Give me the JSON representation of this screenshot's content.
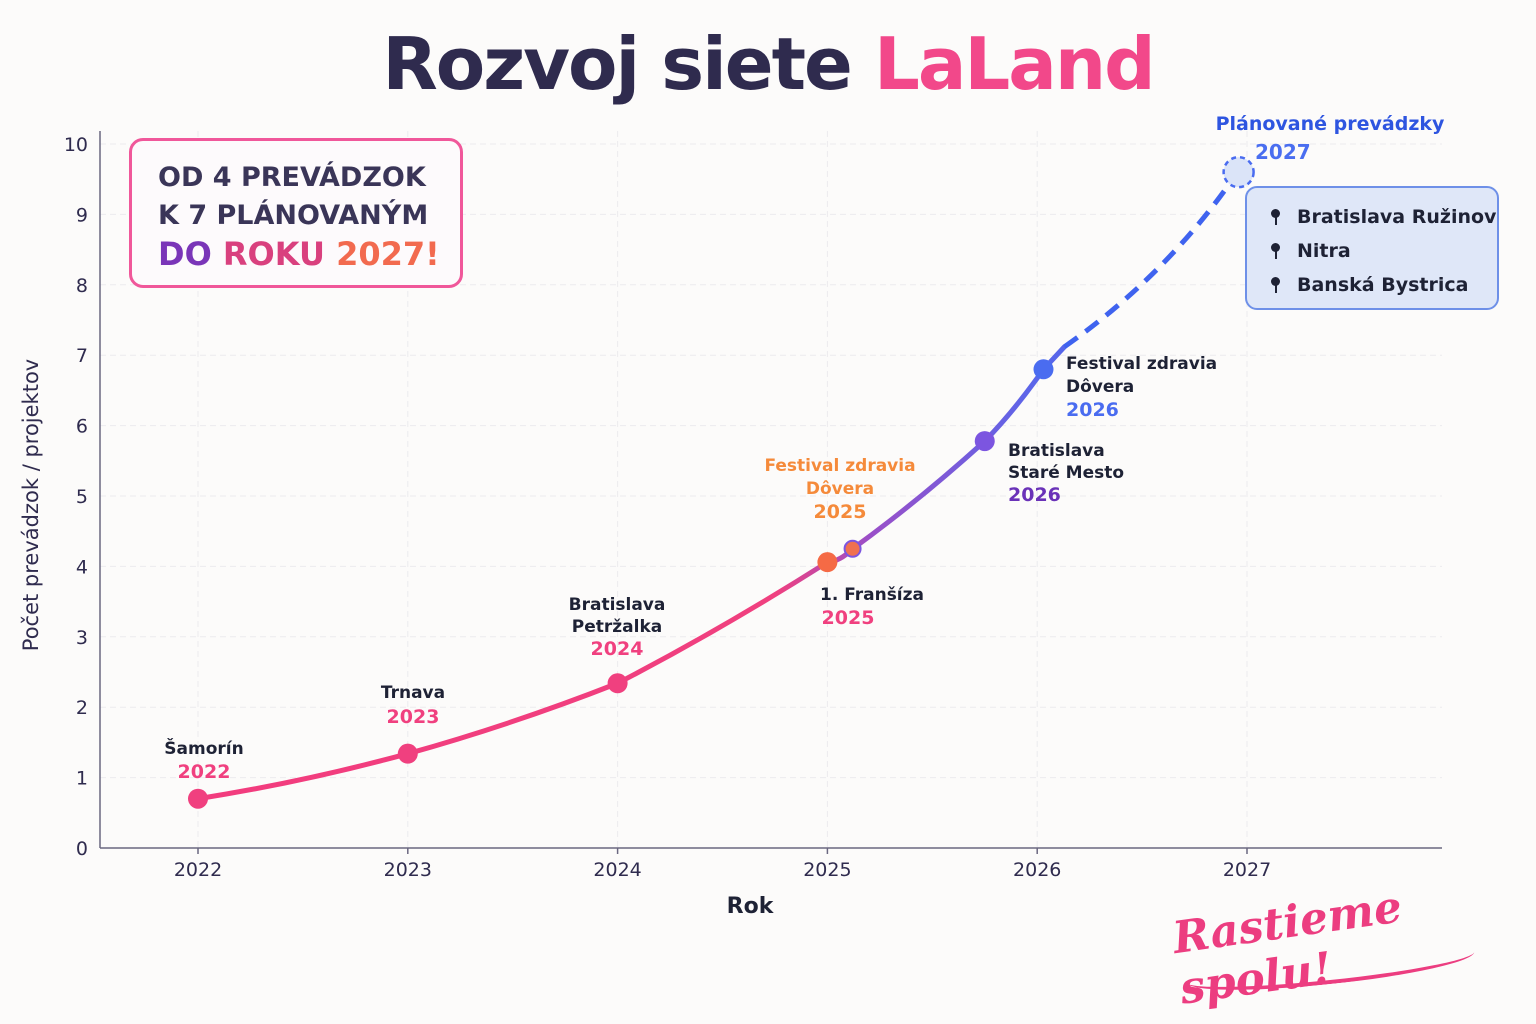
{
  "title": {
    "main": "Rozvoj siete ",
    "accent": "LaLand"
  },
  "callout": {
    "line1": "OD 4 PREVÁDZOK",
    "line2": "K 7 PLÁNOVANÝM",
    "line3_a": "DO ",
    "line3_b": "ROKU ",
    "line3_c": "2027!"
  },
  "planned": {
    "title": "Plánované prevádzky",
    "year": "2027",
    "items": [
      "Bratislava Ružinov",
      "Nitra",
      "Banská Bystrica"
    ]
  },
  "signature": "Rastieme spolu!",
  "colors": {
    "pink": "#f0407f",
    "orange": "#f56a45",
    "purple": "#7c55e0",
    "blue": "#4a6cf0",
    "planned_fill": "#dbe4f8",
    "text": "#1e2235"
  },
  "chart_data": {
    "type": "line",
    "title": "Rozvoj siete LaLand",
    "xlabel": "Rok",
    "ylabel": "Počet prevádzok / projektov",
    "xlim": [
      2021.55,
      2027.9
    ],
    "ylim": [
      0,
      10
    ],
    "xticks": [
      "2022",
      "2023",
      "2024",
      "2025",
      "2026",
      "2027"
    ],
    "yticks": [
      "0",
      "1",
      "2",
      "3",
      "4",
      "5",
      "6",
      "7",
      "8",
      "9",
      "10"
    ],
    "grid": true,
    "points": [
      {
        "x": 2022.0,
        "y": 0.7,
        "name": [
          "Šamorín"
        ],
        "year": "2022",
        "color": "#f0407f",
        "year_color": "#f0407f"
      },
      {
        "x": 2023.0,
        "y": 1.34,
        "name": [
          "Trnava"
        ],
        "year": "2023",
        "color": "#f0407f",
        "year_color": "#f0407f"
      },
      {
        "x": 2024.0,
        "y": 2.34,
        "name": [
          "Bratislava",
          "Petržalka"
        ],
        "year": "2024",
        "color": "#f0407f",
        "year_color": "#f0407f"
      },
      {
        "x": 2025.0,
        "y": 4.06,
        "name": [
          "Festival zdravia",
          "Dôvera"
        ],
        "year": "2025",
        "color": "#f56a45",
        "year_color": "#f58a3a"
      },
      {
        "x": 2025.12,
        "y": 4.25,
        "name": [
          "1. Franšíza"
        ],
        "year": "2025",
        "color": "#f07050",
        "year_color": "#f0407f"
      },
      {
        "x": 2025.75,
        "y": 5.78,
        "name": [
          "Bratislava",
          "Staré Mesto"
        ],
        "year": "2026",
        "color": "#7c55e0",
        "year_color": "#6a32b8"
      },
      {
        "x": 2026.03,
        "y": 6.8,
        "name": [
          "Festival zdravia",
          "Dôvera"
        ],
        "year": "2026",
        "color": "#4a6cf0",
        "year_color": "#4a6cf0"
      }
    ],
    "planned_point": {
      "x": 2026.96,
      "y": 9.6,
      "label": "Plánované prevádzky 2027"
    }
  }
}
